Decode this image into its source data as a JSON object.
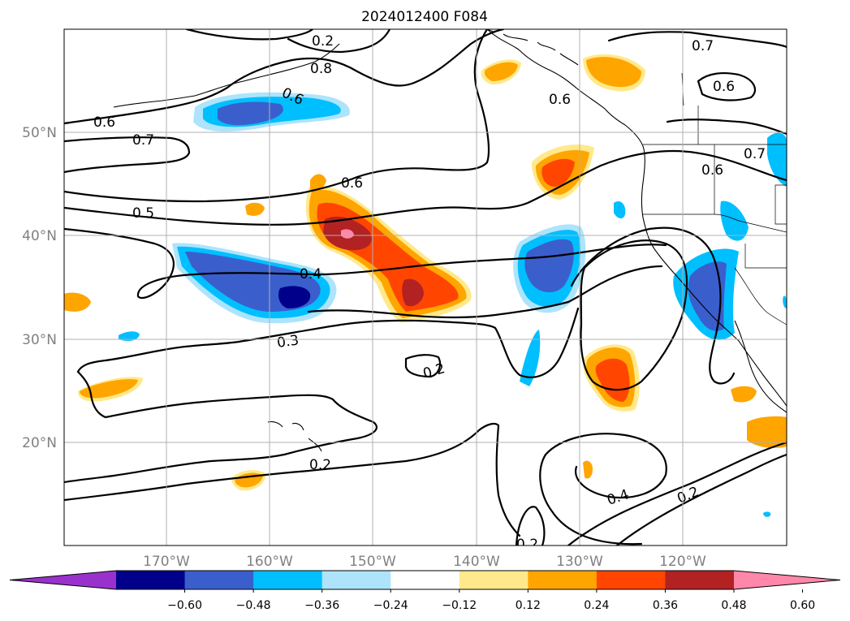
{
  "title": "2024012400 F084",
  "lon_labels": [
    "170°W",
    "160°W",
    "150°W",
    "140°W",
    "130°W",
    "120°W"
  ],
  "lat_labels": [
    "50°N",
    "40°N",
    "30°N",
    "20°N"
  ],
  "colorbar": {
    "ticks": [
      "−0.60",
      "−0.48",
      "−0.36",
      "−0.24",
      "−0.12",
      "0.12",
      "0.24",
      "0.36",
      "0.48",
      "0.60"
    ],
    "colors": [
      "#9932cc",
      "#00008b",
      "#3a5fcd",
      "#00bfff",
      "#ade4fb",
      "#ffffff",
      "#ffe98a",
      "#ffa500",
      "#ff4500",
      "#b22222",
      "#ff88aa"
    ],
    "extend": "both"
  },
  "contour_labels": [
    "0.8",
    "0.7",
    "0.7",
    "0.7",
    "0.6",
    "0.6",
    "0.6",
    "0.6",
    "0.6",
    "0.5",
    "0.4",
    "0.4",
    "0.3",
    "0.2",
    "0.2",
    "0.2",
    "0.2",
    "0.6",
    "0.2"
  ],
  "colors": {
    "pos_light": "#ffe98a",
    "pos_orange": "#ffa500",
    "pos_red": "#ff4500",
    "pos_dark": "#b22222",
    "pos_pink": "#ff88aa",
    "neg_light": "#ade4fb",
    "neg_cyan": "#00bfff",
    "neg_blue": "#3a5fcd",
    "neg_navy": "#00008b"
  }
}
